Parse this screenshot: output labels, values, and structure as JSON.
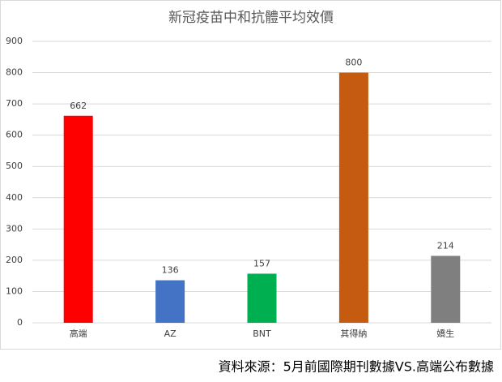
{
  "chart_data": {
    "type": "bar",
    "title": "新冠疫苗中和抗體平均效價",
    "categories": [
      "高端",
      "AZ",
      "BNT",
      "其得納",
      "嬌生"
    ],
    "values": [
      662,
      136,
      157,
      800,
      214
    ],
    "colors": [
      "#ff0000",
      "#4472c4",
      "#00b050",
      "#c55a11",
      "#7f7f7f"
    ],
    "ylim": [
      0,
      900
    ],
    "yticks": [
      0,
      100,
      200,
      300,
      400,
      500,
      600,
      700,
      800,
      900
    ],
    "grid": true,
    "data_labels": true
  },
  "source": "資料來源：5月前國際期刊數據VS.高端公布數據"
}
